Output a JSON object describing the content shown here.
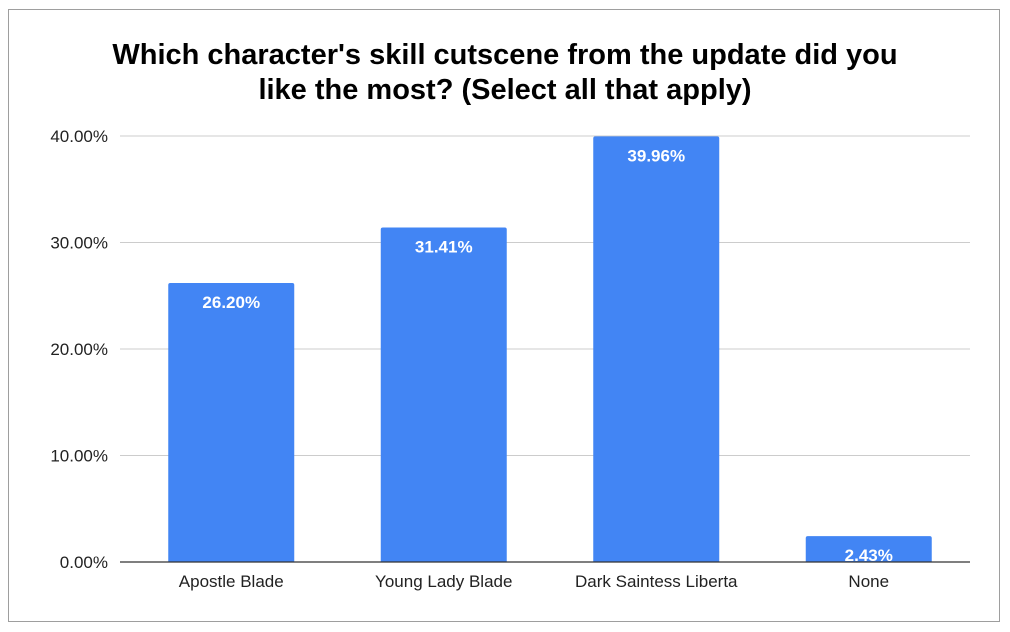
{
  "chart_data": {
    "type": "bar",
    "title_lines": [
      "Which character's skill cutscene from the update did you",
      "like the most? (Select all that apply)"
    ],
    "categories": [
      "Apostle Blade",
      "Young Lady Blade",
      "Dark Saintess Liberta",
      "None"
    ],
    "values": [
      26.2,
      31.41,
      39.96,
      2.43
    ],
    "data_labels": [
      "26.20%",
      "31.41%",
      "39.96%",
      "2.43%"
    ],
    "ylim": [
      0,
      40
    ],
    "yticks": [
      0,
      10,
      20,
      30,
      40
    ],
    "ytick_labels": [
      "0.00%",
      "10.00%",
      "20.00%",
      "30.00%",
      "40.00%"
    ],
    "xlabel": "",
    "ylabel": "",
    "grid": true,
    "bar_color": "#4285f4",
    "grid_color": "#cccccc",
    "axis_color": "#333333"
  }
}
